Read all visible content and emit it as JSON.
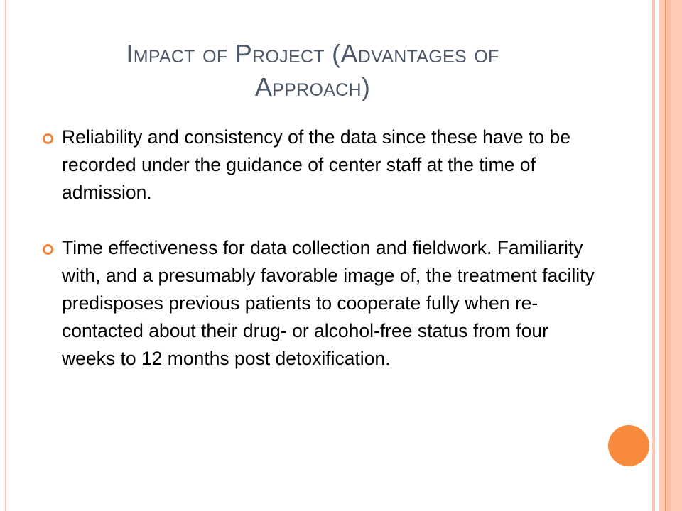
{
  "slide": {
    "title": "Impact of Project (Advantages of Approach)",
    "title_line1": "Impact of Project (Advantages of",
    "title_line2": "Approach)",
    "bullets": [
      {
        "text": "Reliability and consistency of the data since these have to be recorded under the guidance of center staff at the time of admission."
      },
      {
        "text": "Time effectiveness for data collection and fieldwork. Familiarity with, and a presumably favorable image of, the treatment facility predisposes previous patients to cooperate fully when re-contacted about their drug- or alcohol-free status from four weeks to 12 months post detoxification."
      }
    ],
    "colors": {
      "accent": "#f88a3d",
      "stripe": "#fdc9b5",
      "title": "#4d5868"
    }
  }
}
